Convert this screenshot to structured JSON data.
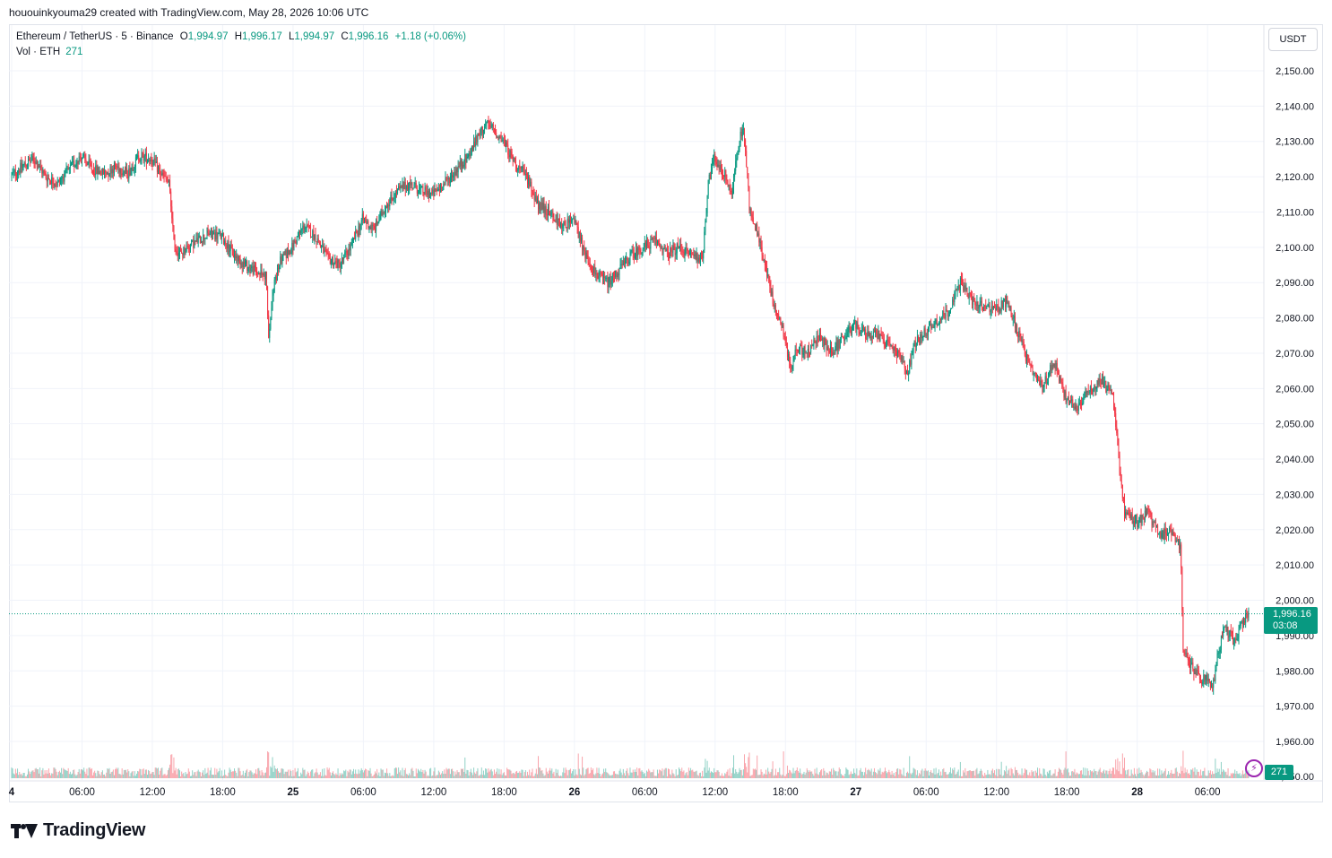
{
  "header": {
    "credit": "hououinkyouma29 created with TradingView.com, May 28, 2026 10:06 UTC"
  },
  "legend": {
    "symbol": "Ethereum / TetherUS · 5 · Binance",
    "open_label": "O",
    "open": "1,994.97",
    "high_label": "H",
    "high": "1,996.17",
    "low_label": "L",
    "low": "1,994.97",
    "close_label": "C",
    "close": "1,996.16",
    "change": "+1.18 (+0.06%)",
    "vol_label": "Vol · ETH",
    "vol_value": "271"
  },
  "currency_button": "USDT",
  "last_price": {
    "price": "1,996.16",
    "countdown": "03:08"
  },
  "volume_tag": "271",
  "brand": {
    "name": "TradingView"
  },
  "colors": {
    "up": "#089981",
    "down": "#f23645",
    "grid": "#f0f3fa",
    "axis_text": "#131722"
  },
  "chart_data": {
    "type": "candlestick",
    "y_axis": {
      "min": 1957,
      "max": 2157,
      "ticks": [
        2150,
        2140,
        2130,
        2120,
        2110,
        2100,
        2090,
        2080,
        2070,
        2060,
        2050,
        2040,
        2030,
        2020,
        2010,
        2000,
        1990,
        1980,
        1970,
        1960
      ],
      "tick_labels": [
        "2,150.00",
        "2,140.00",
        "2,130.00",
        "2,120.00",
        "2,110.00",
        "2,100.00",
        "2,090.00",
        "2,080.00",
        "2,070.00",
        "2,060.00",
        "2,050.00",
        "2,040.00",
        "2,030.00",
        "2,020.00",
        "2,010.00",
        "2,000.00",
        "1,990.00",
        "1,980.00",
        "1,970.00",
        "1,960.00"
      ],
      "bottom_partial_label": "1,950.00"
    },
    "x_axis": {
      "range_hours": [
        0,
        106
      ],
      "ticks": [
        {
          "h": 0,
          "label": "4"
        },
        {
          "h": 6,
          "label": "06:00"
        },
        {
          "h": 12,
          "label": "12:00"
        },
        {
          "h": 18,
          "label": "18:00"
        },
        {
          "h": 24,
          "label": "25"
        },
        {
          "h": 30,
          "label": "06:00"
        },
        {
          "h": 36,
          "label": "12:00"
        },
        {
          "h": 42,
          "label": "18:00"
        },
        {
          "h": 48,
          "label": "26"
        },
        {
          "h": 54,
          "label": "06:00"
        },
        {
          "h": 60,
          "label": "12:00"
        },
        {
          "h": 66,
          "label": "18:00"
        },
        {
          "h": 72,
          "label": "27"
        },
        {
          "h": 78,
          "label": "06:00"
        },
        {
          "h": 84,
          "label": "12:00"
        },
        {
          "h": 90,
          "label": "18:00"
        },
        {
          "h": 96,
          "label": "28"
        },
        {
          "h": 102,
          "label": "06:00"
        }
      ]
    },
    "last_price_line": 1996.16,
    "price_path": [
      [
        0,
        2120
      ],
      [
        1,
        2123
      ],
      [
        2,
        2125
      ],
      [
        3,
        2120
      ],
      [
        4,
        2118
      ],
      [
        5,
        2122
      ],
      [
        6,
        2126
      ],
      [
        7,
        2122
      ],
      [
        8,
        2121
      ],
      [
        9,
        2123
      ],
      [
        10,
        2121
      ],
      [
        11,
        2126
      ],
      [
        12,
        2125
      ],
      [
        13,
        2120
      ],
      [
        13.5,
        2118
      ],
      [
        14,
        2100
      ],
      [
        14.5,
        2098
      ],
      [
        15,
        2100
      ],
      [
        16,
        2102
      ],
      [
        17,
        2104
      ],
      [
        18,
        2103
      ],
      [
        19,
        2098
      ],
      [
        20,
        2095
      ],
      [
        21,
        2093
      ],
      [
        21.8,
        2092
      ],
      [
        22,
        2075
      ],
      [
        22.5,
        2090
      ],
      [
        23,
        2096
      ],
      [
        24,
        2100
      ],
      [
        25,
        2106
      ],
      [
        26,
        2103
      ],
      [
        27,
        2097
      ],
      [
        28,
        2095
      ],
      [
        29,
        2100
      ],
      [
        30,
        2108
      ],
      [
        31,
        2105
      ],
      [
        32,
        2112
      ],
      [
        33,
        2116
      ],
      [
        34,
        2118
      ],
      [
        35,
        2116
      ],
      [
        36,
        2115
      ],
      [
        37,
        2118
      ],
      [
        38,
        2122
      ],
      [
        39,
        2126
      ],
      [
        40,
        2132
      ],
      [
        40.5,
        2135
      ],
      [
        41,
        2134
      ],
      [
        42,
        2130
      ],
      [
        43,
        2124
      ],
      [
        44,
        2120
      ],
      [
        45,
        2112
      ],
      [
        46,
        2110
      ],
      [
        47,
        2106
      ],
      [
        48,
        2108
      ],
      [
        49,
        2098
      ],
      [
        50,
        2092
      ],
      [
        51,
        2090
      ],
      [
        52,
        2094
      ],
      [
        53,
        2098
      ],
      [
        54,
        2100
      ],
      [
        55,
        2102
      ],
      [
        56,
        2098
      ],
      [
        57,
        2100
      ],
      [
        58,
        2098
      ],
      [
        59,
        2097
      ],
      [
        59.5,
        2118
      ],
      [
        60,
        2125
      ],
      [
        61,
        2120
      ],
      [
        61.5,
        2115
      ],
      [
        62,
        2128
      ],
      [
        62.5,
        2135
      ],
      [
        63,
        2112
      ],
      [
        64,
        2100
      ],
      [
        65,
        2085
      ],
      [
        66,
        2075
      ],
      [
        66.5,
        2065
      ],
      [
        67,
        2072
      ],
      [
        68,
        2070
      ],
      [
        69,
        2075
      ],
      [
        70,
        2070
      ],
      [
        71,
        2074
      ],
      [
        72,
        2078
      ],
      [
        73,
        2075
      ],
      [
        74,
        2075
      ],
      [
        75,
        2072
      ],
      [
        76,
        2068
      ],
      [
        76.5,
        2064
      ],
      [
        77,
        2072
      ],
      [
        78,
        2076
      ],
      [
        79,
        2079
      ],
      [
        80,
        2082
      ],
      [
        81,
        2090
      ],
      [
        82,
        2085
      ],
      [
        83,
        2083
      ],
      [
        84,
        2082
      ],
      [
        85,
        2085
      ],
      [
        86,
        2075
      ],
      [
        87,
        2065
      ],
      [
        88,
        2060
      ],
      [
        89,
        2068
      ],
      [
        90,
        2057
      ],
      [
        91,
        2055
      ],
      [
        92,
        2060
      ],
      [
        93,
        2062
      ],
      [
        94,
        2058
      ],
      [
        94.5,
        2040
      ],
      [
        95,
        2025
      ],
      [
        96,
        2022
      ],
      [
        97,
        2025
      ],
      [
        98,
        2018
      ],
      [
        99,
        2020
      ],
      [
        99.8,
        2015
      ],
      [
        100,
        1985
      ],
      [
        101,
        1980
      ],
      [
        101.5,
        1977
      ],
      [
        102,
        1978
      ],
      [
        102.5,
        1975
      ],
      [
        103,
        1985
      ],
      [
        103.5,
        1992
      ],
      [
        104,
        1990
      ],
      [
        104.5,
        1988
      ],
      [
        105,
        1994
      ],
      [
        105.5,
        1996.16
      ]
    ]
  }
}
